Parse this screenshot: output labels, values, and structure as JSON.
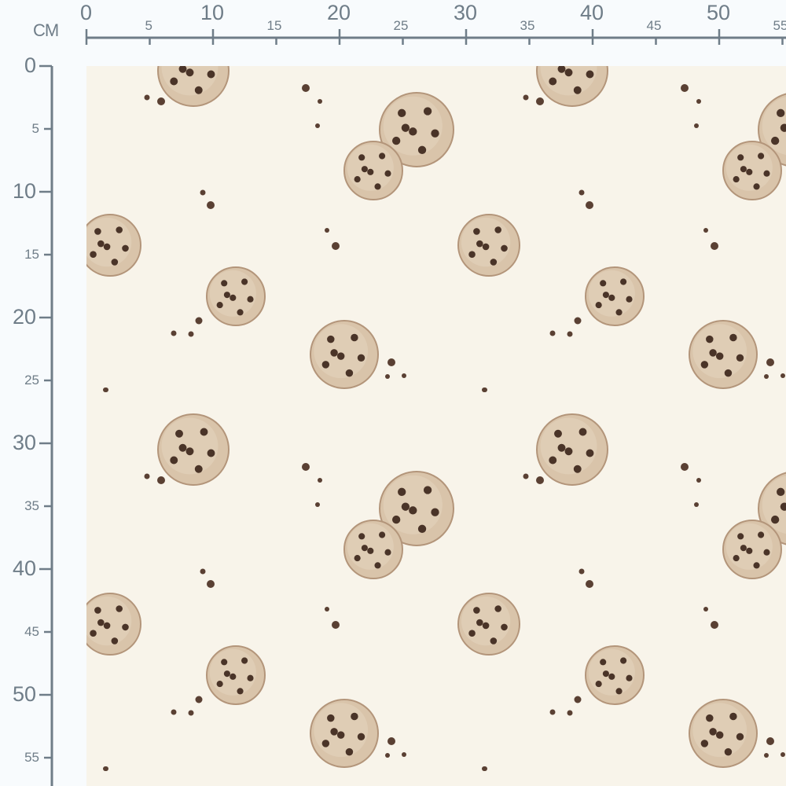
{
  "ruler": {
    "unit": "CM",
    "horizontal_labels": [
      "0",
      "5",
      "10",
      "15",
      "20",
      "25",
      "30",
      "35",
      "40",
      "45",
      "50",
      "55"
    ],
    "vertical_labels": [
      "0",
      "5",
      "10",
      "15",
      "20",
      "25",
      "30",
      "35",
      "40",
      "45",
      "50",
      "55"
    ],
    "color": "#6f7d88"
  },
  "fabric": {
    "pattern": "chocolate chip cookies",
    "background_color": "#f8f4ea",
    "cookie_color": "#d9c4aa",
    "chip_color": "#4a3428"
  }
}
